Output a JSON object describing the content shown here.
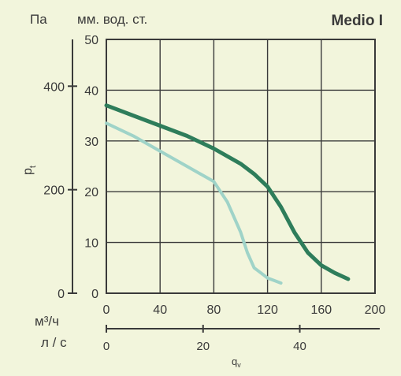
{
  "header": {
    "pa_unit": "Па",
    "mm_unit": "мм. вод. ст.",
    "model": "Medio I"
  },
  "axes": {
    "y_symbol": "p",
    "y_subscript": "t",
    "x_symbol": "q",
    "x_subscript": "v",
    "m3h_unit": "м³/ч",
    "ls_unit": "л / с"
  },
  "colors": {
    "background": "#f2f5dc",
    "curve_main": "#2e7d5b",
    "curve_secondary": "#9fd3c8",
    "grid": "#3a3a3a"
  },
  "chart_data": {
    "type": "line",
    "xlabel": "q",
    "ylabel": "p",
    "xlim": [
      0,
      200
    ],
    "ylim": [
      0,
      50
    ],
    "grid": true,
    "x_ticks": [
      "0",
      "40",
      "80",
      "120",
      "160",
      "200"
    ],
    "y_ticks": [
      "0",
      "10",
      "20",
      "30",
      "40",
      "50"
    ],
    "pa_ticks": [
      {
        "label": "0",
        "value": 0
      },
      {
        "label": "200",
        "value": 200
      },
      {
        "label": "400",
        "value": 400
      }
    ],
    "ls_ticks": [
      {
        "label": "0",
        "value": 0
      },
      {
        "label": "20",
        "value": 20
      },
      {
        "label": "40",
        "value": 40
      }
    ],
    "series": [
      {
        "x": [
          0,
          20,
          40,
          60,
          80,
          100,
          110,
          120,
          130,
          140,
          150,
          160,
          170,
          180
        ],
        "y": [
          37,
          35,
          33,
          31,
          28.5,
          25.5,
          23.5,
          21,
          17,
          12,
          8,
          5.5,
          4,
          2.8
        ]
      },
      {
        "x": [
          0,
          20,
          40,
          60,
          80,
          90,
          100,
          105,
          110,
          115,
          120,
          125,
          130
        ],
        "y": [
          33.5,
          31,
          28,
          25,
          22,
          18,
          12,
          8,
          5,
          4,
          3,
          2.5,
          2
        ]
      }
    ]
  }
}
